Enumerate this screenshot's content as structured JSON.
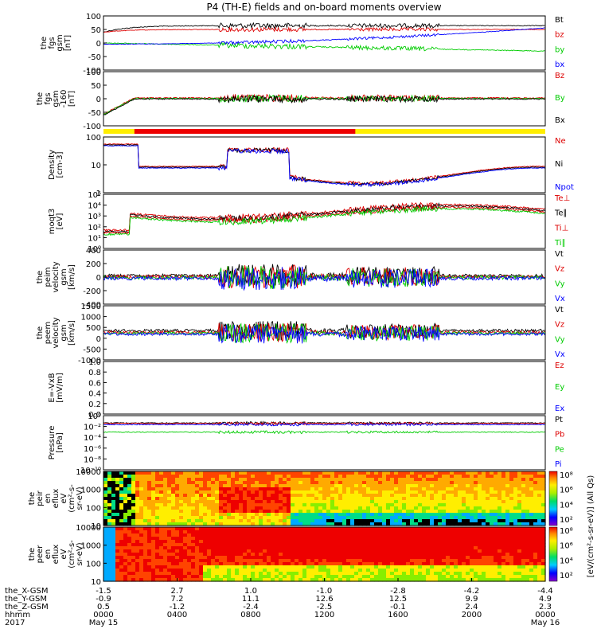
{
  "title": "P4 (TH-E) fields and on-board moments overview",
  "chart_data": {
    "type": "line",
    "x_time_labels": [
      "0000",
      "0400",
      "0800",
      "1200",
      "1600",
      "2000",
      "0000"
    ],
    "panels": [
      {
        "id": "fgs",
        "ylabel": [
          "the",
          "fgs",
          "gsm",
          "[nT]"
        ],
        "ylim": [
          -100,
          100
        ],
        "ticks": [
          "100",
          "50",
          "0",
          "-50",
          "-100"
        ],
        "legend": [
          {
            "name": "Bt",
            "color": "#000000"
          },
          {
            "name": "bz",
            "color": "#dd0000"
          },
          {
            "name": "by",
            "color": "#00cc00"
          },
          {
            "name": "bx",
            "color": "#0000ff"
          }
        ]
      },
      {
        "id": "fgs_bd",
        "ylabel": [
          "the",
          "fgs",
          "gsm",
          "-160",
          "[nT]"
        ],
        "ylim": [
          -100,
          100
        ],
        "ticks": [
          "100",
          "50",
          "0",
          "-50",
          "-100"
        ],
        "legend": [
          {
            "name": "Bz",
            "color": "#dd0000"
          },
          {
            "name": "By",
            "color": "#00cc00"
          },
          {
            "name": "Bx",
            "color": "#000000"
          }
        ]
      },
      {
        "id": "density",
        "ylabel": [
          "Density",
          "[cm-3]"
        ],
        "ylim": [
          0.001,
          100
        ],
        "log": true,
        "ticks": [
          "100",
          "10",
          "1"
        ],
        "legend": [
          {
            "name": "Ne",
            "color": "#dd0000"
          },
          {
            "name": "Ni",
            "color": "#000000"
          },
          {
            "name": "Npot",
            "color": "#0000ff"
          }
        ]
      },
      {
        "id": "temp",
        "ylabel": [
          "moqt3",
          "[eV]"
        ],
        "log": true,
        "ticks": [
          "10⁵",
          "10⁴",
          "10³",
          "10²",
          "10¹",
          "10⁰"
        ],
        "legend": [
          {
            "name": "Te⊥",
            "color": "#dd0000"
          },
          {
            "name": "Te∥",
            "color": "#000000"
          },
          {
            "name": "Ti⊥",
            "color": "#dd0000"
          },
          {
            "name": "Ti∥",
            "color": "#00cc00"
          }
        ]
      },
      {
        "id": "peim_v",
        "ylabel": [
          "the",
          "peim",
          "velocity",
          "gsm",
          "[km/s]"
        ],
        "ylim": [
          -400,
          400
        ],
        "ticks": [
          "400",
          "200",
          "0",
          "-200",
          "-400"
        ],
        "legend": [
          {
            "name": "Vt",
            "color": "#000000"
          },
          {
            "name": "Vz",
            "color": "#dd0000"
          },
          {
            "name": "Vy",
            "color": "#00cc00"
          },
          {
            "name": "Vx",
            "color": "#0000ff"
          }
        ]
      },
      {
        "id": "peem_v",
        "ylabel": [
          "the",
          "peem",
          "velocity",
          "gsm",
          "[km/s]"
        ],
        "ylim": [
          -1500,
          1500
        ],
        "ticks": [
          "1500",
          "1000",
          "500",
          "0",
          "-500",
          "-1000"
        ],
        "legend": [
          {
            "name": "Vt",
            "color": "#000000"
          },
          {
            "name": "Vz",
            "color": "#dd0000"
          },
          {
            "name": "Vy",
            "color": "#00cc00"
          },
          {
            "name": "Vx",
            "color": "#0000ff"
          }
        ]
      },
      {
        "id": "efield",
        "ylabel": [
          "E=-VxB",
          "[mV/m]"
        ],
        "ylim": [
          0,
          1
        ],
        "ticks": [
          "1.0",
          "0.8",
          "0.6",
          "0.4",
          "0.2",
          "0.0"
        ],
        "legend": [
          {
            "name": "Ez",
            "color": "#dd0000"
          },
          {
            "name": "Ey",
            "color": "#00cc00"
          },
          {
            "name": "Ex",
            "color": "#0000ff"
          }
        ]
      },
      {
        "id": "pressure",
        "ylabel": [
          "Pressure",
          "[nPa]"
        ],
        "log": true,
        "ticks": [
          "10⁰",
          "10⁻²",
          "10⁻⁴",
          "10⁻⁶",
          "10⁻⁸",
          "10⁻¹⁰"
        ],
        "legend": [
          {
            "name": "Pt",
            "color": "#000000"
          },
          {
            "name": "Pb",
            "color": "#dd0000"
          },
          {
            "name": "Pe",
            "color": "#00cc00"
          },
          {
            "name": "Pi",
            "color": "#0000ff"
          }
        ]
      },
      {
        "id": "peir_spec",
        "type": "heatmap",
        "ylabel": [
          "the",
          "peir",
          "en",
          "eflux",
          "eV",
          "(cm²-s-",
          "sr-eV)"
        ],
        "ticks": [
          "10000",
          "1000",
          "100",
          "10"
        ]
      },
      {
        "id": "peer_spec",
        "type": "heatmap",
        "ylabel": [
          "the",
          "peer",
          "en",
          "eflux",
          "eV",
          "(cm²-s-",
          "sr-eV)"
        ],
        "ticks": [
          "10000",
          "1000",
          "100",
          "10"
        ]
      }
    ],
    "colorbar": {
      "label": "[eV/(cm²-s-sr-eV)] (All Qs)",
      "ticks": [
        "10⁸",
        "10⁶",
        "10⁴",
        "10²"
      ]
    },
    "orbit_table": {
      "rows": [
        {
          "name": "the_X-GSM",
          "values": [
            "-1.5",
            "2.7",
            "1.0",
            "-1.0",
            "-2.8",
            "-4.2",
            "-4.4"
          ]
        },
        {
          "name": "the_Y-GSM",
          "values": [
            "-0.9",
            "7.2",
            "11.1",
            "12.6",
            "12.5",
            "9.9",
            "4.9"
          ]
        },
        {
          "name": "the_Z-GSM",
          "values": [
            "0.5",
            "-1.2",
            "-2.4",
            "-2.5",
            "-0.1",
            "2.4",
            "2.3"
          ]
        },
        {
          "name": "hhmm",
          "values": [
            "0000",
            "0400",
            "0800",
            "1200",
            "1600",
            "2000",
            "0000"
          ]
        },
        {
          "name": "2017",
          "values": [
            "May 15",
            "",
            "",
            "",
            "",
            "",
            "May 16"
          ]
        }
      ]
    }
  }
}
